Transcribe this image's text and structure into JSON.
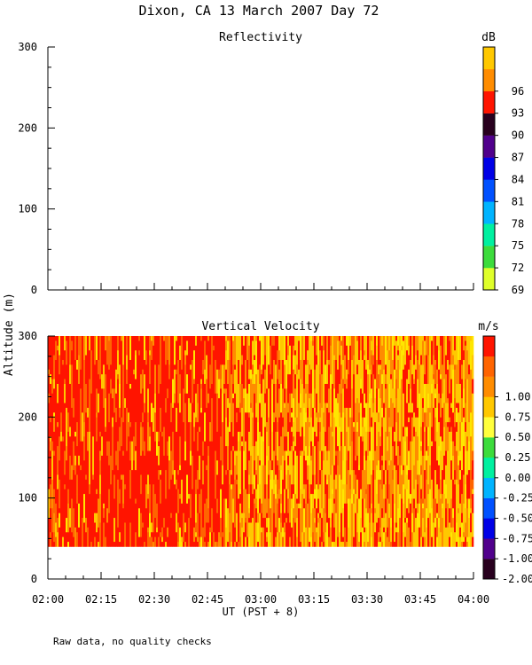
{
  "page": {
    "title": "Dixon, CA 13 March 2007  Day  72",
    "footer": "Raw data, no quality checks",
    "shared_ylabel": "Altitude (m)",
    "xlabel": "UT  (PST + 8)"
  },
  "colors": {
    "reflectivity_bins": [
      "#dfff2a",
      "#3cdc3c",
      "#00f0a0",
      "#00b4ff",
      "#0050ff",
      "#0000e6",
      "#50008c",
      "#28001e",
      "#ff1400",
      "#ff8c00",
      "#ffc800"
    ],
    "velocity_bins": [
      "#28001e",
      "#50008c",
      "#0000e6",
      "#0050ff",
      "#00b4ff",
      "#00f0a0",
      "#3cdc3c",
      "#ffff3c",
      "#ffc800",
      "#ff8c00",
      "#ff6400",
      "#ff1400"
    ],
    "velocity_field_palette": [
      "#ff1400",
      "#ff6400",
      "#ff8c00",
      "#ffc800",
      "#ffe600"
    ]
  },
  "chart_data": [
    {
      "type": "heatmap",
      "title": "Reflectivity",
      "ylabel": "Altitude (m)",
      "xlabel": "",
      "x_ticks": [
        "02:00",
        "02:15",
        "02:30",
        "02:45",
        "03:00",
        "03:15",
        "03:30",
        "03:45",
        "04:00"
      ],
      "y_ticks": [
        "0",
        "100",
        "200",
        "300"
      ],
      "ylim": [
        0,
        300
      ],
      "colorbar": {
        "unit": "dB",
        "labels": [
          "69",
          "72",
          "75",
          "78",
          "81",
          "84",
          "87",
          "90",
          "93",
          "96"
        ]
      },
      "values": []
    },
    {
      "type": "heatmap",
      "title": "Vertical Velocity",
      "ylabel": "Altitude (m)",
      "xlabel": "UT  (PST + 8)",
      "x_ticks": [
        "02:00",
        "02:15",
        "02:30",
        "02:45",
        "03:00",
        "03:15",
        "03:30",
        "03:45",
        "04:00"
      ],
      "y_ticks": [
        "0",
        "100",
        "200",
        "300"
      ],
      "ylim": [
        0,
        300
      ],
      "data_altitude_range": [
        40,
        300
      ],
      "colorbar": {
        "unit": "m/s",
        "labels": [
          "-2.00",
          "-1.00",
          "-0.75",
          "-0.50",
          "-0.25",
          "0.00",
          "0.25",
          "0.50",
          "0.75",
          "1.00"
        ]
      },
      "time_segments": [
        {
          "start": "02:00",
          "end": "02:50",
          "mean_velocity": 1.0
        },
        {
          "start": "02:50",
          "end": "03:10",
          "mean_velocity": 0.6
        },
        {
          "start": "03:10",
          "end": "04:00",
          "mean_velocity": 0.55
        }
      ]
    }
  ]
}
